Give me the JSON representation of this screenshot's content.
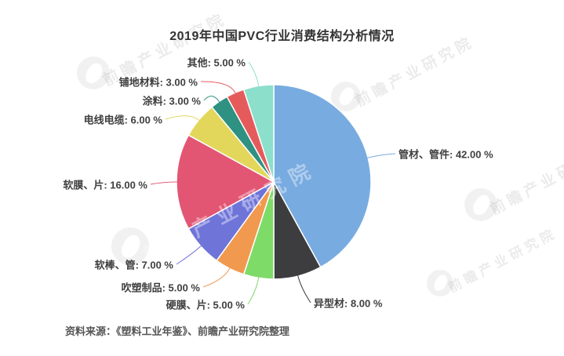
{
  "title": "2019年中国PVC行业消费结构分析情况",
  "source": "资料来源：《塑料工业年鉴》、前瞻产业研究院整理",
  "watermark": "前瞻产业研究院",
  "background_color": "#ffffff",
  "chart_data": {
    "type": "pie",
    "title": "2019年中国PVC行业消费结构分析情况",
    "unit": "%",
    "direction": "clockwise",
    "start_angle_deg": 0,
    "label_format": "{label}: {value} %",
    "legend": "none",
    "segments": [
      {
        "label": "管材、管件",
        "value": 42,
        "display": "42.00 %",
        "color": "#78ABE0"
      },
      {
        "label": "异型材",
        "value": 8,
        "display": "8.00 %",
        "color": "#3D3D40"
      },
      {
        "label": "硬膜、片",
        "value": 5,
        "display": "5.00 %",
        "color": "#7EDB67"
      },
      {
        "label": "吹塑制品",
        "value": 5,
        "display": "5.00 %",
        "color": "#F0994F"
      },
      {
        "label": "软棒、管",
        "value": 7,
        "display": "7.00 %",
        "color": "#6E74D8"
      },
      {
        "label": "软膜、片",
        "value": 16,
        "display": "16.00 %",
        "color": "#E25673"
      },
      {
        "label": "电线电缆",
        "value": 6,
        "display": "6.00 %",
        "color": "#E2D75B"
      },
      {
        "label": "涂料",
        "value": 3,
        "display": "3.00 %",
        "color": "#2F9181"
      },
      {
        "label": "铺地材料",
        "value": 3,
        "display": "3.00 %",
        "color": "#E55B5B"
      },
      {
        "label": "其他",
        "value": 5,
        "display": "5.00 %",
        "color": "#8BDFCB"
      }
    ]
  }
}
